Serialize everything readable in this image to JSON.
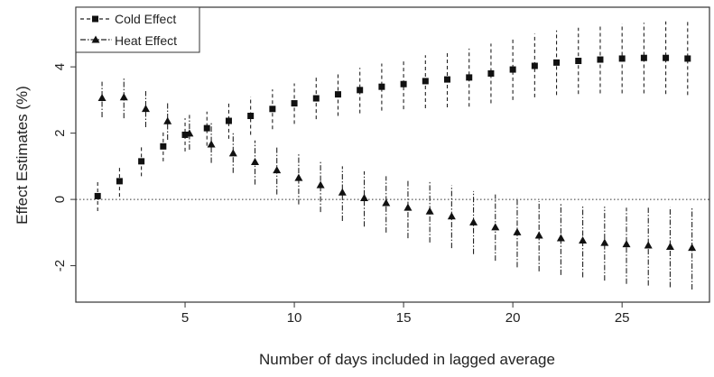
{
  "chart_data": {
    "type": "scatter",
    "xlabel": "Number of days included in lagged average",
    "ylabel": "Effect Estimates (%)",
    "xlim": [
      0,
      29
    ],
    "ylim": [
      -3.1,
      5.8
    ],
    "xticks": [
      5,
      10,
      15,
      20,
      25
    ],
    "yticks": [
      -2,
      0,
      2,
      4
    ],
    "reference_line": {
      "y": 0,
      "style": "dotted"
    },
    "legend": {
      "position": "top-left"
    },
    "error_bars": true,
    "series": [
      {
        "name": "Cold Effect",
        "marker": "square",
        "line_style": "dashed",
        "x": [
          1,
          2,
          3,
          4,
          5,
          6,
          7,
          8,
          9,
          10,
          11,
          12,
          13,
          14,
          15,
          16,
          17,
          18,
          19,
          20,
          21,
          22,
          23,
          24,
          25,
          26,
          27,
          28
        ],
        "y": [
          0.1,
          0.55,
          1.15,
          1.6,
          1.95,
          2.15,
          2.37,
          2.52,
          2.73,
          2.9,
          3.05,
          3.17,
          3.3,
          3.4,
          3.48,
          3.57,
          3.62,
          3.68,
          3.8,
          3.92,
          4.03,
          4.13,
          4.18,
          4.22,
          4.25,
          4.27,
          4.27,
          4.25
        ],
        "lower": [
          -0.35,
          0.08,
          0.7,
          1.15,
          1.45,
          1.62,
          1.83,
          1.95,
          2.12,
          2.28,
          2.42,
          2.52,
          2.6,
          2.68,
          2.72,
          2.75,
          2.78,
          2.8,
          2.9,
          3.0,
          3.08,
          3.15,
          3.18,
          3.2,
          3.2,
          3.2,
          3.18,
          3.15
        ],
        "upper": [
          0.55,
          1.0,
          1.6,
          2.05,
          2.45,
          2.65,
          2.9,
          3.1,
          3.32,
          3.5,
          3.68,
          3.82,
          3.97,
          4.1,
          4.22,
          4.35,
          4.45,
          4.55,
          4.7,
          4.85,
          5.0,
          5.1,
          5.18,
          5.25,
          5.3,
          5.33,
          5.37,
          5.4
        ]
      },
      {
        "name": "Heat Effect",
        "marker": "triangle",
        "line_style": "dash-dot",
        "x": [
          1.2,
          2.2,
          3.2,
          4.2,
          5.2,
          6.2,
          7.2,
          8.2,
          9.2,
          10.2,
          11.2,
          12.2,
          13.2,
          14.2,
          15.2,
          16.2,
          17.2,
          18.2,
          19.2,
          20.2,
          21.2,
          22.2,
          23.2,
          24.2,
          25.2,
          26.2,
          27.2,
          28.2
        ],
        "y": [
          3.05,
          3.07,
          2.72,
          2.35,
          1.98,
          1.65,
          1.38,
          1.12,
          0.87,
          0.64,
          0.42,
          0.2,
          0.03,
          -0.12,
          -0.26,
          -0.37,
          -0.52,
          -0.7,
          -0.85,
          -1.0,
          -1.1,
          -1.18,
          -1.25,
          -1.32,
          -1.36,
          -1.4,
          -1.44,
          -1.47
        ],
        "lower": [
          2.48,
          2.45,
          2.18,
          1.8,
          1.5,
          1.1,
          0.8,
          0.45,
          0.15,
          -0.15,
          -0.38,
          -0.65,
          -0.82,
          -1.0,
          -1.17,
          -1.3,
          -1.47,
          -1.65,
          -1.85,
          -2.05,
          -2.17,
          -2.28,
          -2.35,
          -2.45,
          -2.55,
          -2.6,
          -2.65,
          -2.72
        ],
        "upper": [
          3.55,
          3.65,
          3.27,
          2.95,
          2.55,
          2.3,
          2.0,
          1.78,
          1.6,
          1.4,
          1.18,
          1.0,
          0.85,
          0.7,
          0.6,
          0.55,
          0.42,
          0.25,
          0.15,
          0.05,
          -0.05,
          -0.12,
          -0.18,
          -0.22,
          -0.25,
          -0.25,
          -0.24,
          -0.22
        ]
      }
    ]
  }
}
